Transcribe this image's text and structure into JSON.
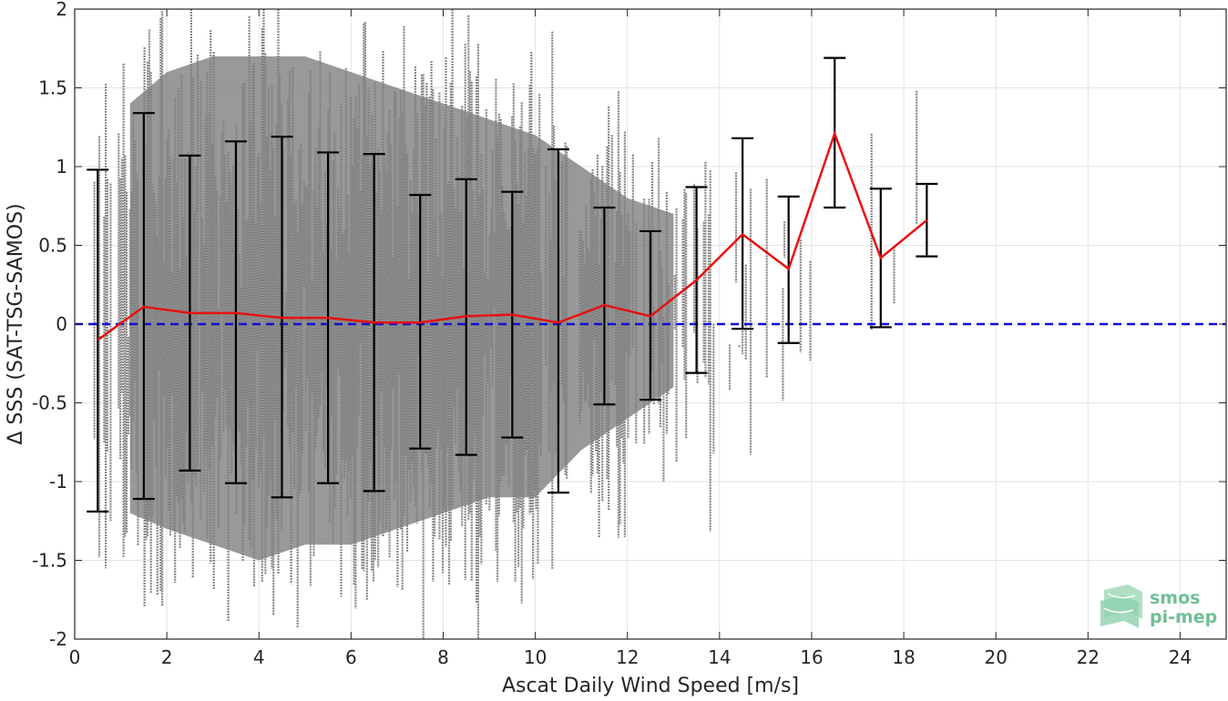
{
  "chart_data": {
    "type": "scatter",
    "title": "",
    "xlabel": "Ascat Daily Wind Speed [m/s]",
    "ylabel": "Δ SSS (SAT-TSG-SAMOS)",
    "xlim": [
      0,
      25
    ],
    "ylim": [
      -2,
      2
    ],
    "xticks": [
      "0",
      "2",
      "4",
      "6",
      "8",
      "10",
      "12",
      "14",
      "16",
      "18",
      "20",
      "22",
      "24"
    ],
    "yticks": [
      "2",
      "1.5",
      "1",
      "0.5",
      "0",
      "-0.5",
      "-1",
      "-1.5",
      "-2"
    ],
    "grid": true,
    "series": [
      {
        "kind": "scatter",
        "color": "#808080",
        "description_density": "dense vertical streaks, 0-19 m/s"
      },
      {
        "kind": "line_with_errorbars",
        "color": "#e81010",
        "errorbar_color": "#000000",
        "x": [
          0.5,
          1.5,
          2.5,
          3.5,
          4.5,
          5.5,
          6.5,
          7.5,
          8.5,
          9.5,
          10.5,
          11.5,
          12.5,
          13.5,
          14.5,
          15.5,
          16.5,
          17.5,
          18.5
        ],
        "y": [
          -0.1,
          0.11,
          0.07,
          0.07,
          0.04,
          0.04,
          0.01,
          0.01,
          0.05,
          0.06,
          0.01,
          0.12,
          0.05,
          0.28,
          0.57,
          0.35,
          1.21,
          0.42,
          0.66
        ],
        "lower": [
          -1.19,
          -1.11,
          -0.93,
          -1.01,
          -1.1,
          -1.01,
          -1.06,
          -0.79,
          -0.83,
          -0.72,
          -1.07,
          -0.51,
          -0.48,
          -0.31,
          -0.03,
          -0.12,
          0.74,
          -0.02,
          0.43
        ],
        "upper": [
          0.98,
          1.34,
          1.07,
          1.16,
          1.19,
          1.09,
          1.08,
          0.82,
          0.92,
          0.84,
          1.11,
          0.74,
          0.59,
          0.87,
          1.18,
          0.81,
          1.69,
          0.86,
          0.89
        ]
      },
      {
        "kind": "reference_line",
        "color": "#1010d0",
        "y": 0,
        "style": "dashed"
      }
    ]
  },
  "logo": {
    "line1": "smos",
    "line2": "pi-mep",
    "color": "#6fbf95"
  }
}
